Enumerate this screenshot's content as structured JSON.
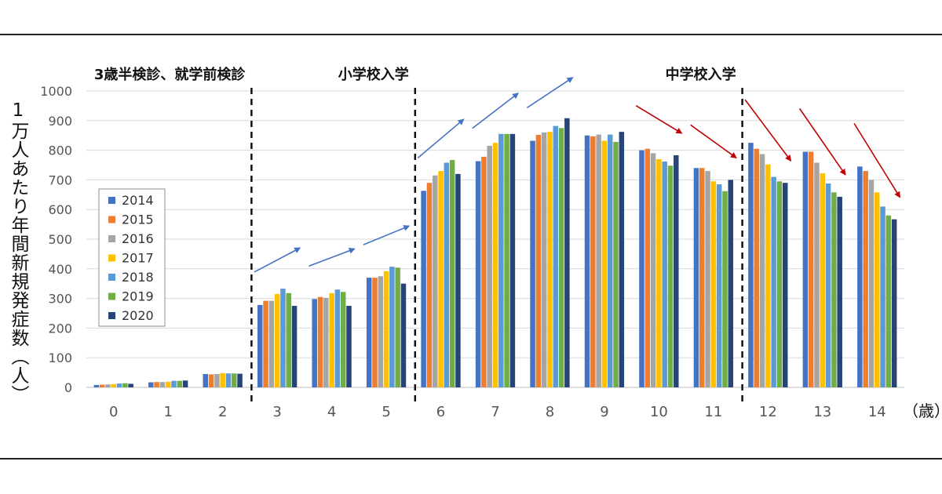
{
  "chart_data": {
    "type": "bar",
    "ylabel": "1万人あたり年間新規発症数（人）",
    "xunit": "（歳）",
    "ylim": [
      0,
      1000
    ],
    "yticks": [
      0,
      100,
      200,
      300,
      400,
      500,
      600,
      700,
      800,
      900,
      1000
    ],
    "grid": "horizontal",
    "legend_position": "left",
    "categories": [
      "0",
      "1",
      "2",
      "3",
      "4",
      "5",
      "6",
      "7",
      "8",
      "9",
      "10",
      "11",
      "12",
      "13",
      "14"
    ],
    "series": [
      {
        "name": "2014",
        "color": "#4472C4",
        "values": [
          8,
          17,
          45,
          278,
          298,
          370,
          663,
          763,
          832,
          850,
          800,
          740,
          825,
          795,
          745
        ]
      },
      {
        "name": "2015",
        "color": "#ED7D31",
        "values": [
          9,
          18,
          44,
          292,
          305,
          370,
          690,
          778,
          852,
          847,
          805,
          740,
          805,
          795,
          730
        ]
      },
      {
        "name": "2016",
        "color": "#A5A5A5",
        "values": [
          10,
          18,
          45,
          292,
          302,
          375,
          715,
          815,
          860,
          853,
          790,
          730,
          787,
          758,
          700
        ]
      },
      {
        "name": "2017",
        "color": "#FFC000",
        "values": [
          11,
          19,
          48,
          315,
          318,
          392,
          730,
          825,
          862,
          832,
          770,
          695,
          752,
          722,
          658
        ]
      },
      {
        "name": "2018",
        "color": "#5B9BD5",
        "values": [
          13,
          22,
          47,
          333,
          330,
          407,
          758,
          855,
          882,
          853,
          762,
          685,
          710,
          688,
          610
        ]
      },
      {
        "name": "2019",
        "color": "#70AD47",
        "values": [
          14,
          22,
          47,
          318,
          322,
          404,
          767,
          855,
          875,
          828,
          748,
          662,
          695,
          658,
          580
        ]
      },
      {
        "name": "2020",
        "color": "#264478",
        "values": [
          12,
          23,
          46,
          275,
          275,
          350,
          720,
          855,
          908,
          862,
          783,
          700,
          690,
          643,
          567
        ]
      }
    ],
    "annotations": [
      {
        "text": "3歳半検診、就学前検診",
        "after_category": "2"
      },
      {
        "text": "小学校入学",
        "after_category": "5"
      },
      {
        "text": "中学校入学",
        "after_category": "11"
      }
    ],
    "trend_arrows": [
      {
        "category": "3",
        "direction": "up",
        "color": "#4472C4"
      },
      {
        "category": "4",
        "direction": "up",
        "color": "#4472C4"
      },
      {
        "category": "5",
        "direction": "up",
        "color": "#4472C4"
      },
      {
        "category": "6",
        "direction": "up",
        "color": "#4472C4"
      },
      {
        "category": "7",
        "direction": "up",
        "color": "#4472C4"
      },
      {
        "category": "8",
        "direction": "up",
        "color": "#4472C4"
      },
      {
        "category": "10",
        "direction": "down",
        "color": "#C00000"
      },
      {
        "category": "11",
        "direction": "down",
        "color": "#C00000"
      },
      {
        "category": "12",
        "direction": "down",
        "color": "#C00000"
      },
      {
        "category": "13",
        "direction": "down",
        "color": "#C00000"
      },
      {
        "category": "14",
        "direction": "down",
        "color": "#C00000"
      }
    ]
  }
}
